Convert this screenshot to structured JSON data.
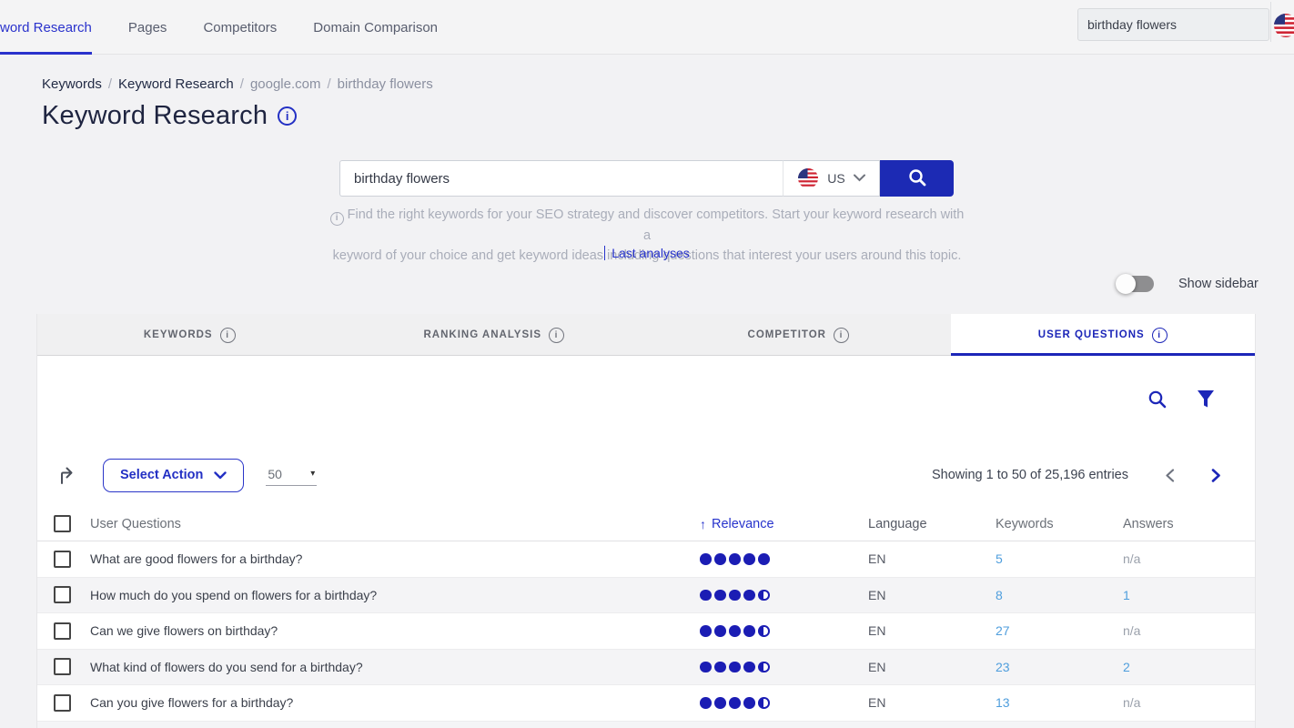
{
  "topnav": {
    "items": [
      {
        "label": "word Research",
        "active": true
      },
      {
        "label": "Pages",
        "active": false
      },
      {
        "label": "Competitors",
        "active": false
      },
      {
        "label": "Domain Comparison",
        "active": false
      }
    ],
    "search": {
      "value": "birthday flowers"
    }
  },
  "breadcrumb": {
    "separator": "/",
    "items": [
      "Keywords",
      "Keyword Research",
      "google.com",
      "birthday flowers"
    ]
  },
  "page": {
    "title": "Keyword Research"
  },
  "search_panel": {
    "input_value": "birthday flowers",
    "country_code": "US",
    "description_line1": "Find the right keywords for your SEO strategy and discover competitors. Start your keyword research with a",
    "description_line2": "keyword of your choice and get keyword ideas including questions that interest your users around this topic.",
    "last_analyses": "Last analyses"
  },
  "sidebar_toggle": {
    "label": "Show sidebar",
    "state": "off"
  },
  "tabs": [
    {
      "label": "KEYWORDS",
      "active": false
    },
    {
      "label": "RANKING ANALYSIS",
      "active": false
    },
    {
      "label": "COMPETITOR",
      "active": false
    },
    {
      "label": "USER QUESTIONS",
      "active": true
    }
  ],
  "toolbar": {
    "select_action": "Select Action",
    "page_size": "50",
    "showing": "Showing 1 to 50 of 25,196 entries"
  },
  "table": {
    "columns": {
      "questions": "User Questions",
      "relevance": "Relevance",
      "language": "Language",
      "keywords": "Keywords",
      "answers": "Answers"
    },
    "sort": {
      "column": "Relevance",
      "direction": "asc"
    },
    "rows": [
      {
        "question": "What are good flowers for a birthday?",
        "relevance": 5,
        "language": "EN",
        "keywords": "5",
        "answers": "n/a"
      },
      {
        "question": "How much do you spend on flowers for a birthday?",
        "relevance": 4.5,
        "language": "EN",
        "keywords": "8",
        "answers": "1"
      },
      {
        "question": "Can we give flowers on birthday?",
        "relevance": 4.5,
        "language": "EN",
        "keywords": "27",
        "answers": "n/a"
      },
      {
        "question": "What kind of flowers do you send for a birthday?",
        "relevance": 4.5,
        "language": "EN",
        "keywords": "23",
        "answers": "2"
      },
      {
        "question": "Can you give flowers for a birthday?",
        "relevance": 4.5,
        "language": "EN",
        "keywords": "13",
        "answers": "n/a"
      }
    ]
  },
  "icons": {
    "sort_asc": "↑",
    "caret_down": "▾",
    "info": "i"
  },
  "colors": {
    "accent_blue": "#1c26b8",
    "link_blue": "#4f9edd",
    "dot_blue": "#1b1db4"
  }
}
